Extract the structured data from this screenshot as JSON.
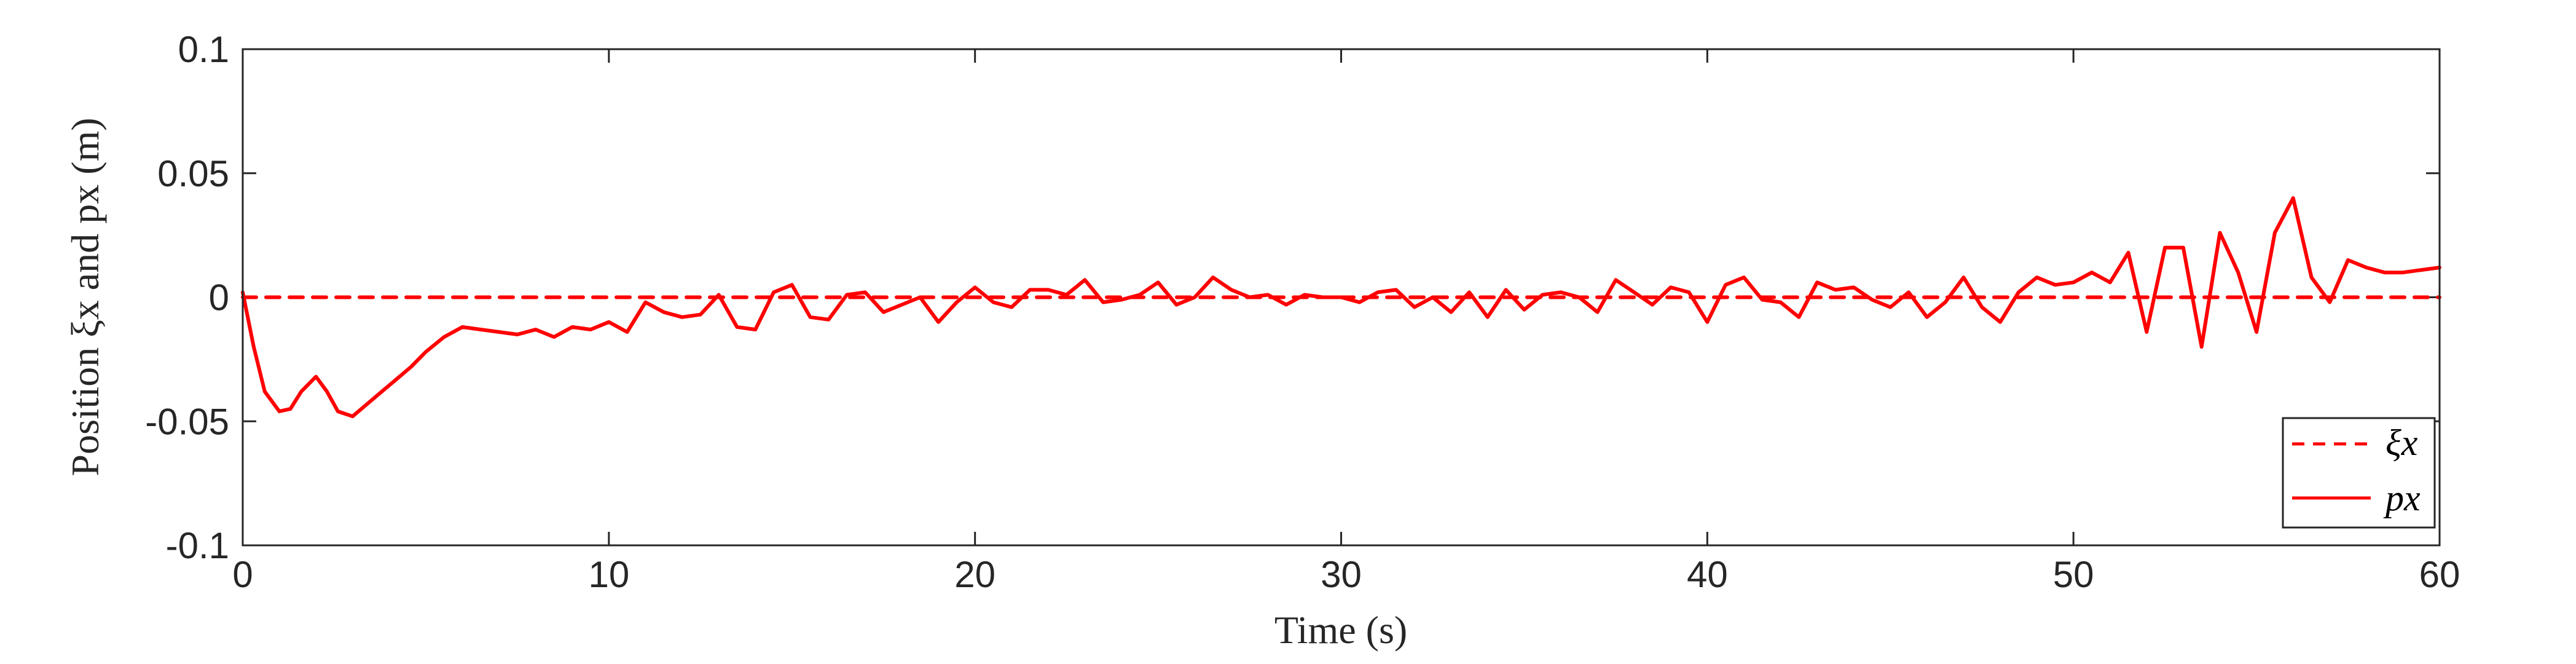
{
  "chart_data": {
    "type": "line",
    "xlabel": "Time (s)",
    "ylabel": "Position ξx and px (m)",
    "xlim": [
      0,
      60
    ],
    "ylim": [
      -0.1,
      0.1
    ],
    "x_ticks": [
      0,
      10,
      20,
      30,
      40,
      50,
      60
    ],
    "x_tick_labels": [
      "0",
      "10",
      "20",
      "30",
      "40",
      "50",
      "60"
    ],
    "y_ticks": [
      0.1,
      0.05,
      0,
      -0.05,
      -0.1
    ],
    "y_tick_labels": [
      "0.1",
      "0.05",
      "0",
      "-0.05",
      "-0.1"
    ],
    "grid": false,
    "legend_position": "bottom-right",
    "series": [
      {
        "name": "ξx",
        "style": "dashed",
        "color": "#ff0000",
        "x": [
          0,
          60
        ],
        "y": [
          0,
          0
        ]
      },
      {
        "name": "px",
        "style": "solid",
        "color": "#ff0000",
        "x": [
          0,
          0.3,
          0.6,
          1.0,
          1.3,
          1.6,
          2.0,
          2.3,
          2.6,
          3.0,
          3.4,
          3.8,
          4.2,
          4.6,
          5.0,
          5.5,
          6.0,
          6.5,
          7.0,
          7.5,
          8.0,
          8.5,
          9.0,
          9.5,
          10.0,
          10.5,
          11.0,
          11.5,
          12.0,
          12.5,
          13.0,
          13.5,
          14.0,
          14.5,
          15.0,
          15.5,
          16.0,
          16.5,
          17.0,
          17.5,
          18.0,
          18.5,
          19.0,
          19.5,
          20.0,
          20.5,
          21.0,
          21.5,
          22.0,
          22.5,
          23.0,
          23.5,
          24.0,
          24.5,
          25.0,
          25.5,
          26.0,
          26.5,
          27.0,
          27.5,
          28.0,
          28.5,
          29.0,
          29.5,
          30.0,
          30.5,
          31.0,
          31.5,
          32.0,
          32.5,
          33.0,
          33.5,
          34.0,
          34.5,
          35.0,
          35.5,
          36.0,
          36.5,
          37.0,
          37.5,
          38.0,
          38.5,
          39.0,
          39.5,
          40.0,
          40.5,
          41.0,
          41.5,
          42.0,
          42.5,
          43.0,
          43.5,
          44.0,
          44.5,
          45.0,
          45.5,
          46.0,
          46.5,
          47.0,
          47.5,
          48.0,
          48.5,
          49.0,
          49.5,
          50.0,
          50.5,
          51.0,
          51.5,
          52.0,
          52.5,
          53.0,
          53.5,
          54.0,
          54.5,
          55.0,
          55.5,
          56.0,
          56.5,
          57.0,
          57.5,
          58.0,
          58.5,
          59.0,
          59.5,
          60.0
        ],
        "y": [
          0.002,
          -0.02,
          -0.038,
          -0.046,
          -0.045,
          -0.038,
          -0.032,
          -0.038,
          -0.046,
          -0.048,
          -0.043,
          -0.038,
          -0.033,
          -0.028,
          -0.022,
          -0.016,
          -0.012,
          -0.013,
          -0.014,
          -0.015,
          -0.013,
          -0.016,
          -0.012,
          -0.013,
          -0.01,
          -0.014,
          -0.002,
          -0.006,
          -0.008,
          -0.007,
          0.001,
          -0.012,
          -0.013,
          0.002,
          0.005,
          -0.008,
          -0.009,
          0.001,
          0.002,
          -0.006,
          -0.003,
          0.0,
          -0.01,
          -0.002,
          0.004,
          -0.002,
          -0.004,
          0.003,
          0.003,
          0.001,
          0.007,
          -0.002,
          -0.001,
          0.001,
          0.006,
          -0.003,
          0.0,
          0.008,
          0.003,
          0.0,
          0.001,
          -0.003,
          0.001,
          0.0,
          0.0,
          -0.002,
          0.002,
          0.003,
          -0.004,
          0.0,
          -0.006,
          0.002,
          -0.008,
          0.003,
          -0.005,
          0.001,
          0.002,
          0.0,
          -0.006,
          0.007,
          0.002,
          -0.003,
          0.004,
          0.002,
          -0.01,
          0.005,
          0.008,
          -0.001,
          -0.002,
          -0.008,
          0.006,
          0.003,
          0.004,
          -0.001,
          -0.004,
          0.002,
          -0.008,
          -0.002,
          0.008,
          -0.004,
          -0.01,
          0.002,
          0.008,
          0.005,
          0.006,
          0.01,
          0.006,
          0.018,
          -0.014,
          0.02,
          0.02,
          -0.02,
          0.026,
          0.01,
          -0.014,
          0.026,
          0.04,
          0.008,
          -0.002,
          0.015,
          0.012,
          0.01,
          0.01,
          0.011,
          0.012
        ]
      }
    ]
  }
}
